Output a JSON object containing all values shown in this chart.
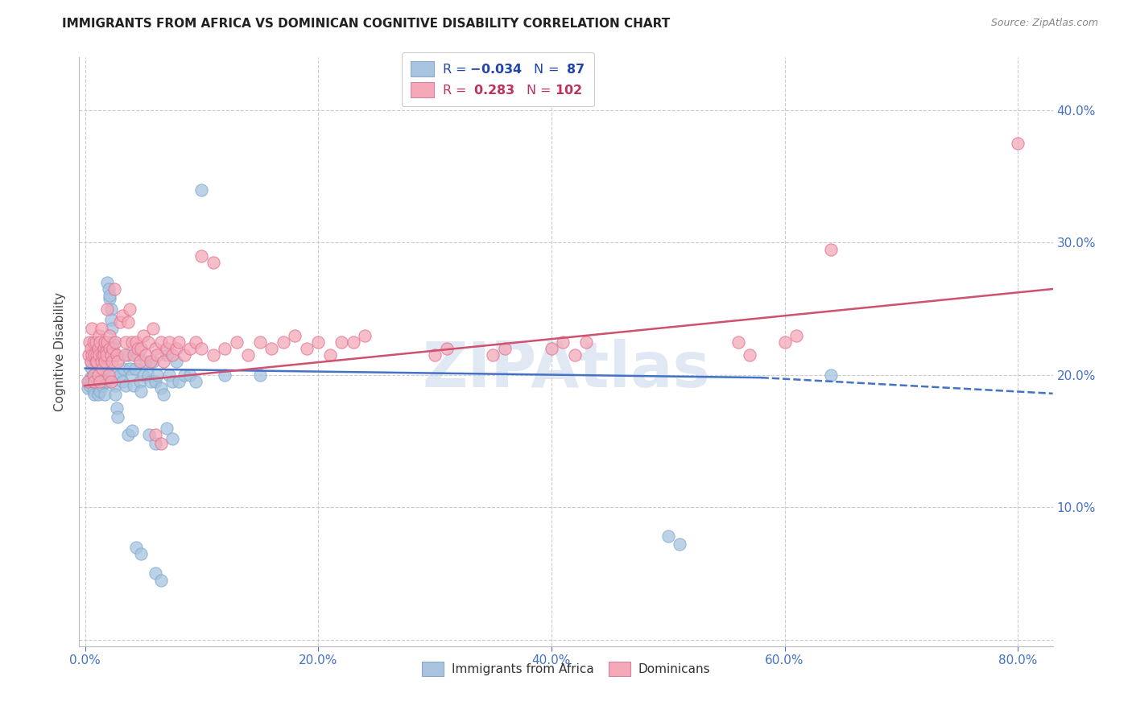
{
  "title": "IMMIGRANTS FROM AFRICA VS DOMINICAN COGNITIVE DISABILITY CORRELATION CHART",
  "source": "Source: ZipAtlas.com",
  "xlabel_ticks": [
    "0.0%",
    "20.0%",
    "40.0%",
    "60.0%",
    "80.0%"
  ],
  "xlabel_vals": [
    0.0,
    0.2,
    0.4,
    0.6,
    0.8
  ],
  "ylabel": "Cognitive Disability",
  "xlim": [
    -0.005,
    0.83
  ],
  "ylim": [
    -0.005,
    0.44
  ],
  "ytick_vals": [
    0.0,
    0.1,
    0.2,
    0.3,
    0.4
  ],
  "africa_color": "#a8c4e0",
  "africa_edge_color": "#7aaacf",
  "dominican_color": "#f4a8b8",
  "dominican_edge_color": "#e07090",
  "africa_R": -0.034,
  "africa_N": 87,
  "dominican_R": 0.283,
  "dominican_N": 102,
  "legend_label_1": "Immigrants from Africa",
  "legend_label_2": "Dominicans",
  "watermark": "ZIPAtlas",
  "trend_africa_color": "#4472c4",
  "trend_dominican_color": "#d05070",
  "africa_points": [
    [
      0.002,
      0.19
    ],
    [
      0.003,
      0.195
    ],
    [
      0.004,
      0.192
    ],
    [
      0.005,
      0.198
    ],
    [
      0.005,
      0.21
    ],
    [
      0.006,
      0.205
    ],
    [
      0.006,
      0.195
    ],
    [
      0.007,
      0.188
    ],
    [
      0.007,
      0.2
    ],
    [
      0.008,
      0.185
    ],
    [
      0.008,
      0.195
    ],
    [
      0.009,
      0.202
    ],
    [
      0.009,
      0.21
    ],
    [
      0.01,
      0.196
    ],
    [
      0.01,
      0.205
    ],
    [
      0.011,
      0.185
    ],
    [
      0.011,
      0.215
    ],
    [
      0.012,
      0.198
    ],
    [
      0.012,
      0.195
    ],
    [
      0.013,
      0.188
    ],
    [
      0.013,
      0.2
    ],
    [
      0.014,
      0.205
    ],
    [
      0.014,
      0.198
    ],
    [
      0.015,
      0.192
    ],
    [
      0.015,
      0.212
    ],
    [
      0.016,
      0.208
    ],
    [
      0.016,
      0.195
    ],
    [
      0.017,
      0.185
    ],
    [
      0.017,
      0.225
    ],
    [
      0.018,
      0.218
    ],
    [
      0.018,
      0.205
    ],
    [
      0.019,
      0.195
    ],
    [
      0.019,
      0.27
    ],
    [
      0.02,
      0.265
    ],
    [
      0.021,
      0.258
    ],
    [
      0.021,
      0.26
    ],
    [
      0.022,
      0.25
    ],
    [
      0.022,
      0.242
    ],
    [
      0.023,
      0.235
    ],
    [
      0.024,
      0.225
    ],
    [
      0.025,
      0.215
    ],
    [
      0.025,
      0.2
    ],
    [
      0.026,
      0.192
    ],
    [
      0.026,
      0.185
    ],
    [
      0.027,
      0.175
    ],
    [
      0.028,
      0.168
    ],
    [
      0.03,
      0.2
    ],
    [
      0.032,
      0.195
    ],
    [
      0.033,
      0.205
    ],
    [
      0.035,
      0.192
    ],
    [
      0.037,
      0.215
    ],
    [
      0.038,
      0.205
    ],
    [
      0.04,
      0.2
    ],
    [
      0.042,
      0.192
    ],
    [
      0.043,
      0.205
    ],
    [
      0.045,
      0.215
    ],
    [
      0.047,
      0.195
    ],
    [
      0.048,
      0.188
    ],
    [
      0.05,
      0.2
    ],
    [
      0.052,
      0.21
    ],
    [
      0.054,
      0.2
    ],
    [
      0.056,
      0.195
    ],
    [
      0.058,
      0.21
    ],
    [
      0.06,
      0.195
    ],
    [
      0.062,
      0.2
    ],
    [
      0.065,
      0.19
    ],
    [
      0.067,
      0.185
    ],
    [
      0.07,
      0.215
    ],
    [
      0.072,
      0.2
    ],
    [
      0.075,
      0.195
    ],
    [
      0.078,
      0.21
    ],
    [
      0.08,
      0.195
    ],
    [
      0.085,
      0.2
    ],
    [
      0.09,
      0.2
    ],
    [
      0.095,
      0.195
    ],
    [
      0.037,
      0.155
    ],
    [
      0.04,
      0.158
    ],
    [
      0.055,
      0.155
    ],
    [
      0.06,
      0.148
    ],
    [
      0.07,
      0.16
    ],
    [
      0.075,
      0.152
    ],
    [
      0.044,
      0.07
    ],
    [
      0.048,
      0.065
    ],
    [
      0.06,
      0.05
    ],
    [
      0.065,
      0.045
    ],
    [
      0.1,
      0.34
    ],
    [
      0.12,
      0.2
    ],
    [
      0.15,
      0.2
    ],
    [
      0.64,
      0.2
    ],
    [
      0.5,
      0.078
    ],
    [
      0.51,
      0.072
    ]
  ],
  "dominican_points": [
    [
      0.002,
      0.195
    ],
    [
      0.003,
      0.215
    ],
    [
      0.004,
      0.225
    ],
    [
      0.005,
      0.21
    ],
    [
      0.005,
      0.22
    ],
    [
      0.006,
      0.235
    ],
    [
      0.006,
      0.215
    ],
    [
      0.007,
      0.225
    ],
    [
      0.007,
      0.2
    ],
    [
      0.008,
      0.195
    ],
    [
      0.008,
      0.215
    ],
    [
      0.009,
      0.21
    ],
    [
      0.009,
      0.225
    ],
    [
      0.01,
      0.215
    ],
    [
      0.01,
      0.21
    ],
    [
      0.011,
      0.2
    ],
    [
      0.011,
      0.22
    ],
    [
      0.012,
      0.23
    ],
    [
      0.012,
      0.215
    ],
    [
      0.013,
      0.195
    ],
    [
      0.013,
      0.225
    ],
    [
      0.014,
      0.235
    ],
    [
      0.014,
      0.21
    ],
    [
      0.015,
      0.205
    ],
    [
      0.015,
      0.215
    ],
    [
      0.016,
      0.22
    ],
    [
      0.016,
      0.215
    ],
    [
      0.017,
      0.225
    ],
    [
      0.017,
      0.21
    ],
    [
      0.018,
      0.218
    ],
    [
      0.018,
      0.215
    ],
    [
      0.019,
      0.225
    ],
    [
      0.019,
      0.25
    ],
    [
      0.02,
      0.2
    ],
    [
      0.021,
      0.22
    ],
    [
      0.021,
      0.23
    ],
    [
      0.022,
      0.215
    ],
    [
      0.022,
      0.195
    ],
    [
      0.023,
      0.21
    ],
    [
      0.024,
      0.22
    ],
    [
      0.025,
      0.265
    ],
    [
      0.026,
      0.225
    ],
    [
      0.027,
      0.215
    ],
    [
      0.028,
      0.21
    ],
    [
      0.03,
      0.24
    ],
    [
      0.032,
      0.245
    ],
    [
      0.034,
      0.215
    ],
    [
      0.035,
      0.225
    ],
    [
      0.037,
      0.24
    ],
    [
      0.038,
      0.25
    ],
    [
      0.04,
      0.225
    ],
    [
      0.042,
      0.215
    ],
    [
      0.044,
      0.225
    ],
    [
      0.045,
      0.22
    ],
    [
      0.047,
      0.21
    ],
    [
      0.048,
      0.22
    ],
    [
      0.05,
      0.23
    ],
    [
      0.052,
      0.215
    ],
    [
      0.054,
      0.225
    ],
    [
      0.056,
      0.21
    ],
    [
      0.058,
      0.235
    ],
    [
      0.06,
      0.22
    ],
    [
      0.062,
      0.215
    ],
    [
      0.065,
      0.225
    ],
    [
      0.067,
      0.21
    ],
    [
      0.07,
      0.22
    ],
    [
      0.072,
      0.225
    ],
    [
      0.075,
      0.215
    ],
    [
      0.078,
      0.22
    ],
    [
      0.08,
      0.225
    ],
    [
      0.085,
      0.215
    ],
    [
      0.09,
      0.22
    ],
    [
      0.095,
      0.225
    ],
    [
      0.1,
      0.22
    ],
    [
      0.11,
      0.215
    ],
    [
      0.12,
      0.22
    ],
    [
      0.13,
      0.225
    ],
    [
      0.14,
      0.215
    ],
    [
      0.15,
      0.225
    ],
    [
      0.16,
      0.22
    ],
    [
      0.17,
      0.225
    ],
    [
      0.18,
      0.23
    ],
    [
      0.19,
      0.22
    ],
    [
      0.2,
      0.225
    ],
    [
      0.21,
      0.215
    ],
    [
      0.22,
      0.225
    ],
    [
      0.23,
      0.225
    ],
    [
      0.24,
      0.23
    ],
    [
      0.06,
      0.155
    ],
    [
      0.065,
      0.148
    ],
    [
      0.3,
      0.215
    ],
    [
      0.31,
      0.22
    ],
    [
      0.35,
      0.215
    ],
    [
      0.36,
      0.22
    ],
    [
      0.4,
      0.22
    ],
    [
      0.41,
      0.225
    ],
    [
      0.42,
      0.215
    ],
    [
      0.43,
      0.225
    ],
    [
      0.56,
      0.225
    ],
    [
      0.57,
      0.215
    ],
    [
      0.6,
      0.225
    ],
    [
      0.61,
      0.23
    ],
    [
      0.1,
      0.29
    ],
    [
      0.11,
      0.285
    ],
    [
      0.64,
      0.295
    ],
    [
      0.8,
      0.375
    ]
  ]
}
